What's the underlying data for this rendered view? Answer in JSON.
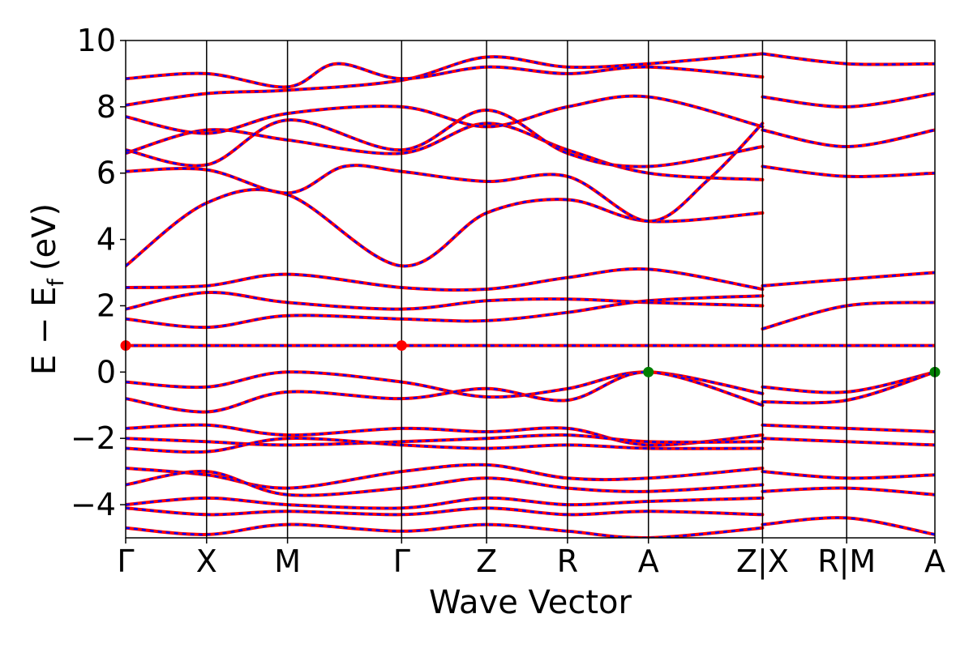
{
  "chart_data": {
    "type": "line",
    "xlabel": "Wave Vector",
    "ylabel": "E − E",
    "ylabel_subscript": "f",
    "ylabel_unit": "(eV)",
    "ylim": [
      -5,
      10
    ],
    "yticks": [
      -4,
      -2,
      0,
      2,
      4,
      6,
      8,
      10
    ],
    "ytick_labels": [
      "−4",
      "−2",
      "0",
      "2",
      "4",
      "6",
      "8",
      "10"
    ],
    "xlim": [
      0,
      10.0
    ],
    "kpoints": [
      {
        "label": "Γ",
        "x": 0.0
      },
      {
        "label": "X",
        "x": 1.0
      },
      {
        "label": "M",
        "x": 2.0
      },
      {
        "label": "Γ",
        "x": 3.41
      },
      {
        "label": "Z",
        "x": 4.46
      },
      {
        "label": "R",
        "x": 5.46
      },
      {
        "label": "A",
        "x": 6.46
      },
      {
        "label": "Z|X",
        "x": 7.87
      },
      {
        "label": "R|M",
        "x": 8.91
      },
      {
        "label": "A",
        "x": 10.0
      }
    ],
    "line_colors": {
      "primary": "#ff0000",
      "secondary": "#0000ff"
    },
    "markers": [
      {
        "name": "CBM",
        "color": "#ff0000",
        "points": [
          [
            0.0,
            0.8
          ],
          [
            3.41,
            0.8
          ]
        ]
      },
      {
        "name": "VBM",
        "color": "#007f00",
        "points": [
          [
            6.46,
            0.0
          ],
          [
            10.0,
            0.0
          ]
        ]
      }
    ],
    "bands": [
      {
        "name": "flat",
        "pts": [
          [
            0,
            0.8
          ],
          [
            10,
            0.8
          ]
        ]
      },
      {
        "name": "c1",
        "pts": [
          [
            0,
            3.2
          ],
          [
            1,
            5.1
          ],
          [
            2,
            5.35
          ],
          [
            3.41,
            3.2
          ],
          [
            4.46,
            4.8
          ],
          [
            5.46,
            5.2
          ],
          [
            6.46,
            4.55
          ],
          [
            7.87,
            4.8
          ]
        ]
      },
      {
        "name": "c2",
        "pts": [
          [
            0,
            6.05
          ],
          [
            1,
            6.1
          ],
          [
            2,
            5.4
          ],
          [
            2.7,
            6.2
          ],
          [
            3.41,
            6.05
          ],
          [
            4.46,
            5.75
          ],
          [
            5.46,
            5.9
          ],
          [
            6.46,
            4.55
          ],
          [
            7.2,
            5.8
          ],
          [
            7.87,
            7.5
          ]
        ]
      },
      {
        "name": "c3",
        "pts": [
          [
            0,
            6.6
          ],
          [
            1,
            7.3
          ],
          [
            2,
            7.0
          ],
          [
            3.41,
            6.6
          ],
          [
            4.46,
            7.5
          ],
          [
            5.46,
            6.7
          ],
          [
            6.46,
            6.0
          ],
          [
            7.87,
            5.8
          ]
        ]
      },
      {
        "name": "c4",
        "pts": [
          [
            0,
            6.7
          ],
          [
            1,
            6.25
          ],
          [
            2,
            7.6
          ],
          [
            3.41,
            6.7
          ],
          [
            4.46,
            7.9
          ],
          [
            5.46,
            6.6
          ],
          [
            6.46,
            6.2
          ],
          [
            7.87,
            6.8
          ]
        ]
      },
      {
        "name": "c5",
        "pts": [
          [
            0,
            7.7
          ],
          [
            1,
            7.2
          ],
          [
            2,
            7.8
          ],
          [
            3.41,
            8.0
          ],
          [
            4.46,
            7.4
          ],
          [
            5.46,
            8.0
          ],
          [
            6.46,
            8.3
          ],
          [
            7.87,
            7.4
          ]
        ]
      },
      {
        "name": "c6",
        "pts": [
          [
            0,
            8.05
          ],
          [
            1,
            8.4
          ],
          [
            2,
            8.5
          ],
          [
            3.41,
            8.8
          ],
          [
            4.46,
            9.5
          ],
          [
            5.46,
            9.2
          ],
          [
            6.46,
            9.3
          ],
          [
            7.87,
            9.6
          ]
        ]
      },
      {
        "name": "c7",
        "pts": [
          [
            0,
            8.85
          ],
          [
            1,
            9.0
          ],
          [
            2,
            8.6
          ],
          [
            2.6,
            9.3
          ],
          [
            3.41,
            8.85
          ],
          [
            4.46,
            9.2
          ],
          [
            5.46,
            9.0
          ],
          [
            6.46,
            9.2
          ],
          [
            7.87,
            8.9
          ]
        ]
      },
      {
        "name": "c8",
        "pts": [
          [
            0,
            2.55
          ],
          [
            1,
            2.6
          ],
          [
            2,
            2.95
          ],
          [
            3.41,
            2.55
          ],
          [
            4.46,
            2.5
          ],
          [
            5.46,
            2.85
          ],
          [
            6.46,
            3.1
          ],
          [
            7.87,
            2.5
          ]
        ]
      },
      {
        "name": "c9",
        "pts": [
          [
            0,
            1.9
          ],
          [
            1,
            2.4
          ],
          [
            2,
            2.1
          ],
          [
            3.41,
            1.9
          ],
          [
            4.46,
            2.15
          ],
          [
            5.46,
            2.2
          ],
          [
            6.46,
            2.1
          ],
          [
            7.87,
            2.0
          ]
        ]
      },
      {
        "name": "c10",
        "pts": [
          [
            0,
            1.6
          ],
          [
            1,
            1.35
          ],
          [
            2,
            1.7
          ],
          [
            3.41,
            1.6
          ],
          [
            4.46,
            1.55
          ],
          [
            5.46,
            1.8
          ],
          [
            6.46,
            2.15
          ],
          [
            7.87,
            2.3
          ]
        ]
      },
      {
        "name": "v1",
        "pts": [
          [
            0,
            -0.3
          ],
          [
            1,
            -0.45
          ],
          [
            2,
            0.0
          ],
          [
            3.41,
            -0.3
          ],
          [
            4.46,
            -0.75
          ],
          [
            5.46,
            -0.5
          ],
          [
            6.46,
            0.0
          ],
          [
            7.87,
            -0.65
          ]
        ]
      },
      {
        "name": "v2",
        "pts": [
          [
            0,
            -0.8
          ],
          [
            1,
            -1.2
          ],
          [
            2,
            -0.6
          ],
          [
            3.41,
            -0.8
          ],
          [
            4.46,
            -0.5
          ],
          [
            5.46,
            -0.85
          ],
          [
            6.46,
            0.0
          ],
          [
            7.87,
            -1.0
          ]
        ]
      },
      {
        "name": "v3",
        "pts": [
          [
            0,
            -1.7
          ],
          [
            1,
            -1.6
          ],
          [
            2,
            -1.9
          ],
          [
            3.41,
            -1.7
          ],
          [
            4.46,
            -1.8
          ],
          [
            5.46,
            -1.7
          ],
          [
            6.46,
            -2.2
          ],
          [
            7.87,
            -1.9
          ]
        ]
      },
      {
        "name": "v4",
        "pts": [
          [
            0,
            -2.0
          ],
          [
            1,
            -2.1
          ],
          [
            2,
            -2.2
          ],
          [
            3.41,
            -2.1
          ],
          [
            4.46,
            -2.0
          ],
          [
            5.46,
            -1.9
          ],
          [
            6.46,
            -2.1
          ],
          [
            7.87,
            -2.1
          ]
        ]
      },
      {
        "name": "v5",
        "pts": [
          [
            0,
            -2.3
          ],
          [
            1,
            -2.4
          ],
          [
            2,
            -2.0
          ],
          [
            3.41,
            -2.2
          ],
          [
            4.46,
            -2.3
          ],
          [
            5.46,
            -2.2
          ],
          [
            6.46,
            -2.3
          ],
          [
            7.87,
            -2.3
          ]
        ]
      },
      {
        "name": "v6",
        "pts": [
          [
            0,
            -2.9
          ],
          [
            1,
            -3.1
          ],
          [
            2,
            -3.5
          ],
          [
            3.41,
            -3.0
          ],
          [
            4.46,
            -2.8
          ],
          [
            5.46,
            -3.2
          ],
          [
            6.46,
            -3.2
          ],
          [
            7.87,
            -2.9
          ]
        ]
      },
      {
        "name": "v7",
        "pts": [
          [
            0,
            -3.4
          ],
          [
            1,
            -3.0
          ],
          [
            2,
            -3.7
          ],
          [
            3.41,
            -3.5
          ],
          [
            4.46,
            -3.2
          ],
          [
            5.46,
            -3.5
          ],
          [
            6.46,
            -3.6
          ],
          [
            7.87,
            -3.4
          ]
        ]
      },
      {
        "name": "v8",
        "pts": [
          [
            0,
            -4.0
          ],
          [
            1,
            -3.8
          ],
          [
            2,
            -4.0
          ],
          [
            3.41,
            -4.1
          ],
          [
            4.46,
            -3.8
          ],
          [
            5.46,
            -4.0
          ],
          [
            6.46,
            -3.9
          ],
          [
            7.87,
            -3.8
          ]
        ]
      },
      {
        "name": "v9",
        "pts": [
          [
            0,
            -4.1
          ],
          [
            1,
            -4.3
          ],
          [
            2,
            -4.2
          ],
          [
            3.41,
            -4.3
          ],
          [
            4.46,
            -4.1
          ],
          [
            5.46,
            -4.3
          ],
          [
            6.46,
            -4.2
          ],
          [
            7.87,
            -4.3
          ]
        ]
      },
      {
        "name": "v10",
        "pts": [
          [
            0,
            -4.7
          ],
          [
            1,
            -4.9
          ],
          [
            2,
            -4.6
          ],
          [
            3.41,
            -4.8
          ],
          [
            4.46,
            -4.6
          ],
          [
            5.46,
            -4.8
          ],
          [
            6.46,
            -5.0
          ],
          [
            7.87,
            -4.7
          ]
        ]
      },
      {
        "name": "s1",
        "pts": [
          [
            7.87,
            7.3
          ],
          [
            8.91,
            6.8
          ],
          [
            10,
            7.3
          ]
        ]
      },
      {
        "name": "s2",
        "pts": [
          [
            7.87,
            6.2
          ],
          [
            8.91,
            5.9
          ],
          [
            10,
            6.0
          ]
        ]
      },
      {
        "name": "s3",
        "pts": [
          [
            7.87,
            8.3
          ],
          [
            8.91,
            8.0
          ],
          [
            10,
            8.4
          ]
        ]
      },
      {
        "name": "s4",
        "pts": [
          [
            7.87,
            9.6
          ],
          [
            8.91,
            9.3
          ],
          [
            10,
            9.3
          ]
        ]
      },
      {
        "name": "s5",
        "pts": [
          [
            7.87,
            2.6
          ],
          [
            8.91,
            2.8
          ],
          [
            10,
            3.0
          ]
        ]
      },
      {
        "name": "s6",
        "pts": [
          [
            7.87,
            1.3
          ],
          [
            8.91,
            2.0
          ],
          [
            10,
            2.1
          ]
        ]
      },
      {
        "name": "s7",
        "pts": [
          [
            7.87,
            -0.45
          ],
          [
            8.91,
            -0.6
          ],
          [
            10,
            0.0
          ]
        ]
      },
      {
        "name": "s8",
        "pts": [
          [
            7.87,
            -0.9
          ],
          [
            8.91,
            -0.85
          ],
          [
            10,
            0.0
          ]
        ]
      },
      {
        "name": "s9",
        "pts": [
          [
            7.87,
            -1.6
          ],
          [
            8.91,
            -1.7
          ],
          [
            10,
            -1.8
          ]
        ]
      },
      {
        "name": "s10",
        "pts": [
          [
            7.87,
            -2.0
          ],
          [
            8.91,
            -2.1
          ],
          [
            10,
            -2.2
          ]
        ]
      },
      {
        "name": "s11",
        "pts": [
          [
            7.87,
            -3.0
          ],
          [
            8.91,
            -3.2
          ],
          [
            10,
            -3.1
          ]
        ]
      },
      {
        "name": "s12",
        "pts": [
          [
            7.87,
            -3.6
          ],
          [
            8.91,
            -3.5
          ],
          [
            10,
            -3.7
          ]
        ]
      },
      {
        "name": "s13",
        "pts": [
          [
            7.87,
            -4.6
          ],
          [
            8.91,
            -4.4
          ],
          [
            10,
            -4.9
          ]
        ]
      }
    ]
  }
}
